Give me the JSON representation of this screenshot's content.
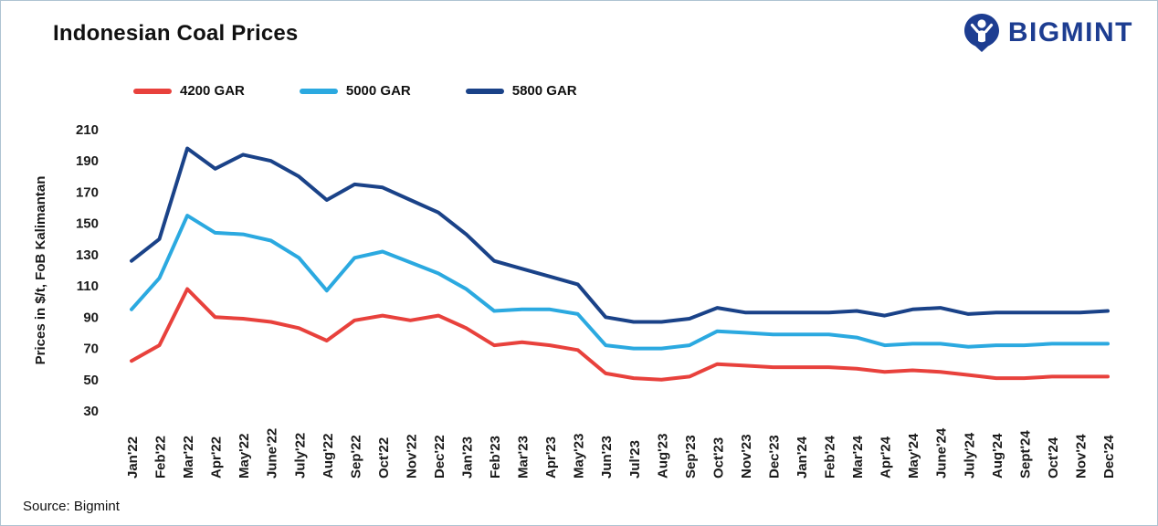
{
  "header": {
    "title": "Indonesian Coal Prices",
    "brand": "BIGMINT"
  },
  "footer": {
    "source": "Source: Bigmint"
  },
  "colors": {
    "brand_navy": "#1d3d91",
    "series_4200": "#e8413c",
    "series_5000": "#2ba9e0",
    "series_5800": "#1a4288",
    "frame_border": "#aec3d2"
  },
  "chart_data": {
    "type": "line",
    "title": "Indonesian Coal Prices",
    "xlabel": "",
    "ylabel": "Prices in $/t, FoB Kalimantan",
    "ylim": [
      30,
      210
    ],
    "ytick_step": 20,
    "grid": false,
    "legend_position": "top",
    "categories": [
      "Jan'22",
      "Feb'22",
      "Mar'22",
      "Apr'22",
      "May'22",
      "June'22",
      "July'22",
      "Aug'22",
      "Sep'22",
      "Oct'22",
      "Nov'22",
      "Dec'22",
      "Jan'23",
      "Feb'23",
      "Mar'23",
      "Apr'23",
      "May'23",
      "Jun'23",
      "Jul'23",
      "Aug'23",
      "Sep'23",
      "Oct'23",
      "Nov'23",
      "Dec'23",
      "Jan'24",
      "Feb'24",
      "Mar'24",
      "Apr'24",
      "May'24",
      "June'24",
      "July'24",
      "Aug'24",
      "Sept'24",
      "Oct'24",
      "Nov'24",
      "Dec'24"
    ],
    "series": [
      {
        "name": "4200 GAR",
        "color": "#e8413c",
        "values": [
          62,
          72,
          108,
          90,
          89,
          87,
          83,
          75,
          88,
          91,
          88,
          91,
          83,
          72,
          74,
          72,
          69,
          54,
          51,
          50,
          52,
          60,
          59,
          58,
          58,
          58,
          57,
          55,
          56,
          55,
          53,
          51,
          51,
          52,
          52,
          52
        ]
      },
      {
        "name": "5000 GAR",
        "color": "#2ba9e0",
        "values": [
          95,
          115,
          155,
          144,
          143,
          139,
          128,
          107,
          128,
          132,
          125,
          118,
          108,
          94,
          95,
          95,
          92,
          72,
          70,
          70,
          72,
          81,
          80,
          79,
          79,
          79,
          77,
          72,
          73,
          73,
          71,
          72,
          72,
          73,
          73,
          73
        ]
      },
      {
        "name": "5800 GAR",
        "color": "#1a4288",
        "values": [
          126,
          140,
          198,
          185,
          194,
          190,
          180,
          165,
          175,
          173,
          165,
          157,
          143,
          126,
          121,
          116,
          111,
          90,
          87,
          87,
          89,
          96,
          93,
          93,
          93,
          93,
          94,
          91,
          95,
          96,
          92,
          93,
          93,
          93,
          93,
          94
        ]
      }
    ]
  }
}
